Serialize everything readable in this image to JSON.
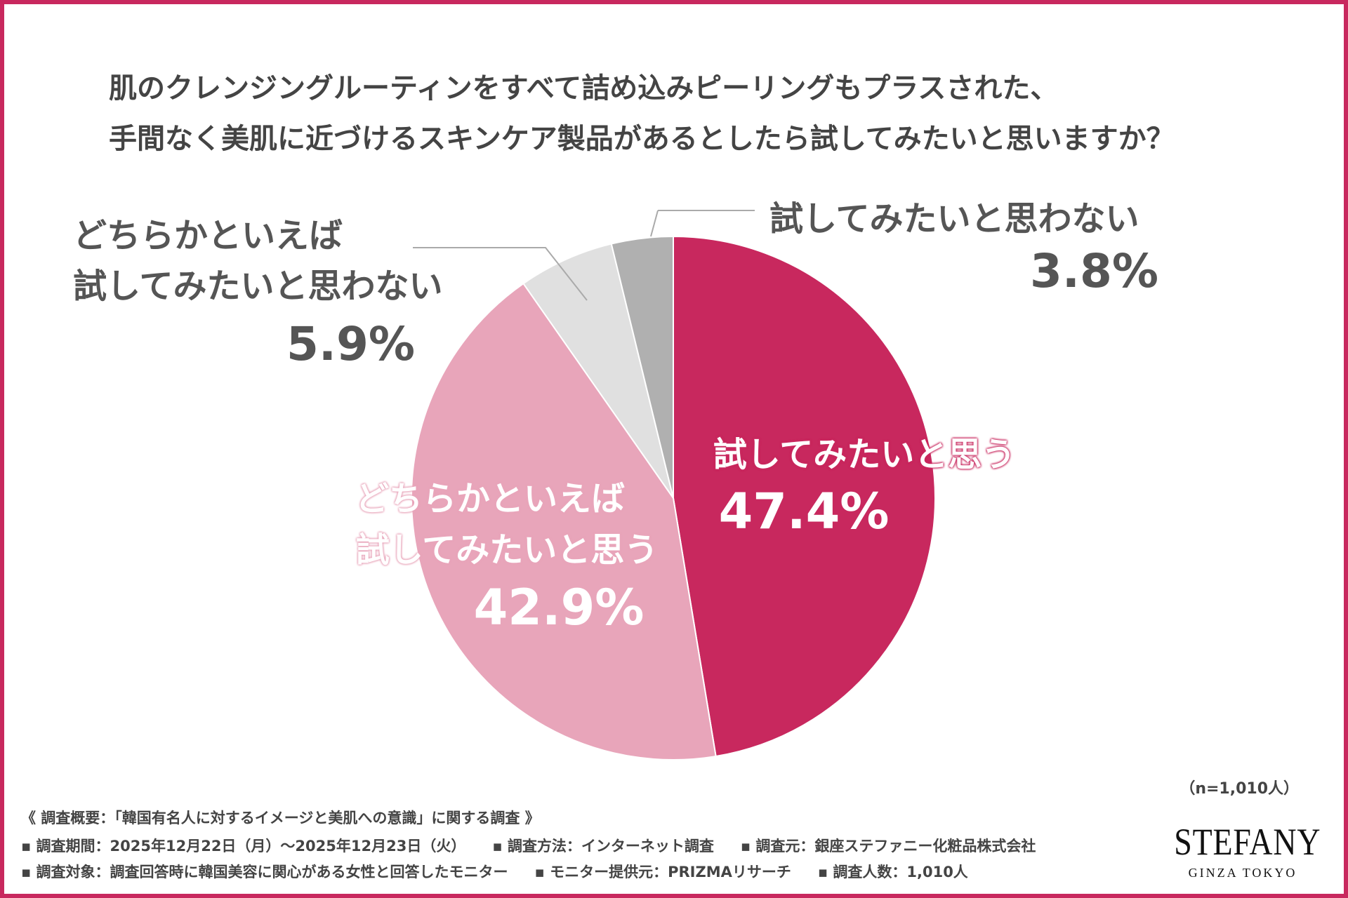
{
  "title_lines": [
    "肌のクレンジングルーティンをすべて詰め込みピーリングもプラスされた、",
    "手間なく美肌に近づけるスキンケア製品があるとしたら試してみたいと思いますか？"
  ],
  "chart_data": {
    "type": "pie",
    "start": "top",
    "direction": "clockwise",
    "slices": [
      {
        "label": "試してみたいと思う",
        "value": 47.4,
        "display": "47.4%",
        "color": "#c8285e"
      },
      {
        "label": "どちらかといえば試してみたいと思う",
        "label_lines": [
          "どちらかといえば",
          "試してみたいと思う"
        ],
        "value": 42.9,
        "display": "42.9%",
        "color": "#e8a5ba"
      },
      {
        "label": "どちらかといえば試してみたいと思わない",
        "label_lines": [
          "どちらかといえば",
          "試してみたいと思わない"
        ],
        "value": 5.9,
        "display": "5.9%",
        "color": "#e0e0e0"
      },
      {
        "label": "試してみたいと思わない",
        "value": 3.8,
        "display": "3.8%",
        "color": "#b0b0b0"
      }
    ]
  },
  "sample_size": "（n=1,010人）",
  "footer": {
    "heading": "《 調査概要：「韓国有名人に対するイメージと美肌への意識」に関する調査 》",
    "row1": [
      "▪ 調査期間：2025年12月22日（月）～2025年12月23日（火）",
      "▪ 調査方法：インターネット調査",
      "▪ 調査元：銀座ステファニー化粧品株式会社"
    ],
    "row2": [
      "▪ 調査対象：調査回答時に韓国美容に関心がある女性と回答したモニター",
      "▪ モニター提供元：PRIZMAリサーチ",
      "▪ 調査人数：1,010人"
    ]
  },
  "logo": {
    "name": "STEFANY",
    "sub": "GINZA TOKYO"
  }
}
